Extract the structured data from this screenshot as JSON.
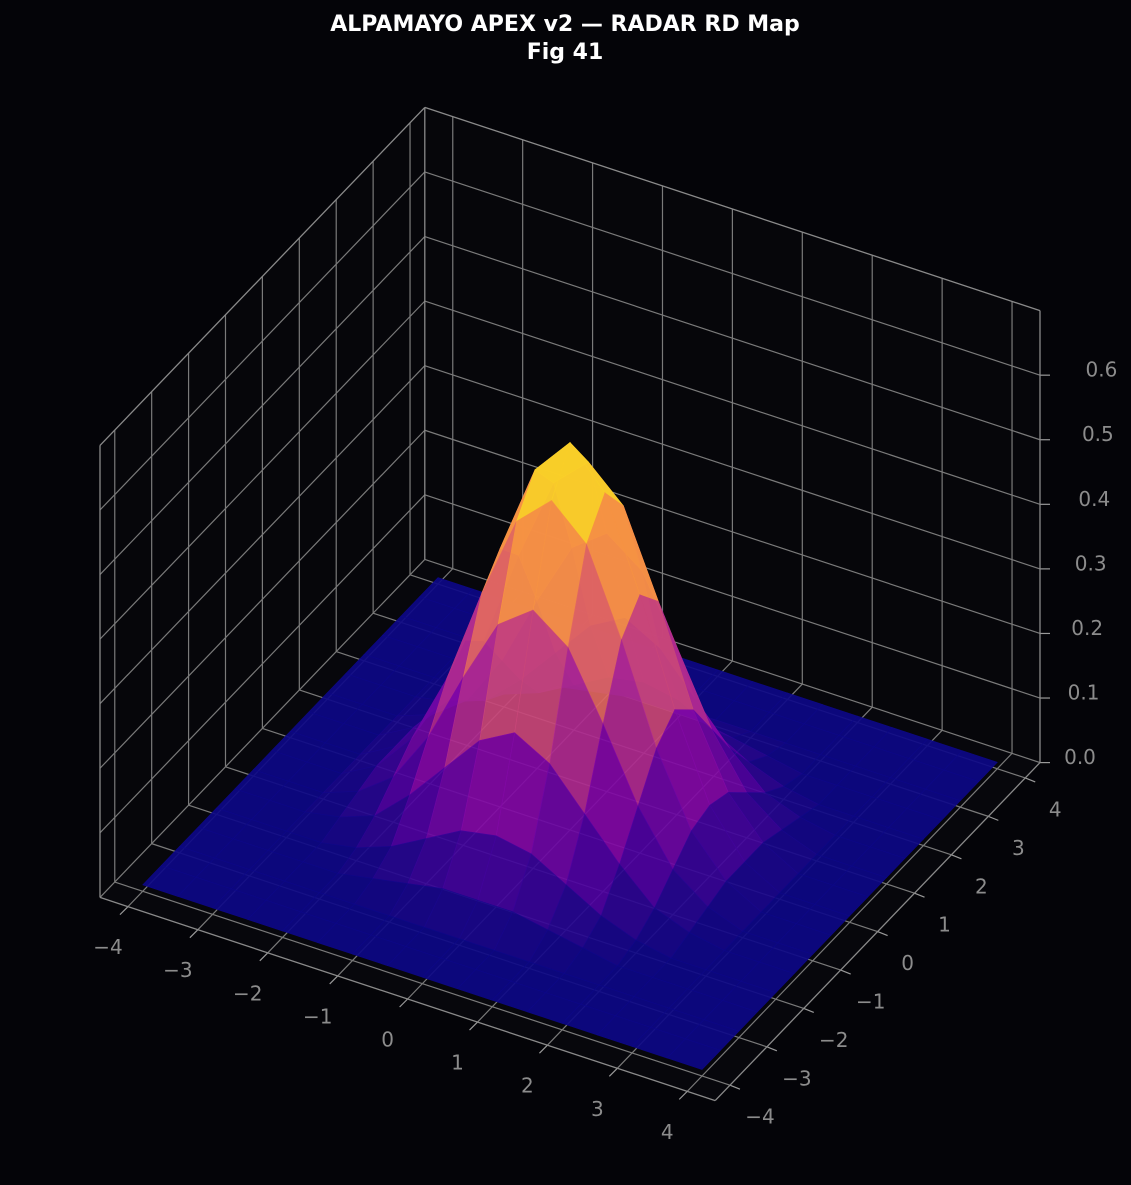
{
  "chart_data": {
    "type": "surface",
    "title": "ALPAMAYO APEX v2 — RADAR RD Map",
    "subtitle": "Fig 41",
    "colormap": "plasma",
    "grid": true,
    "x": [
      -4,
      -3.5,
      -3,
      -2.5,
      -2,
      -1.5,
      -1,
      -0.5,
      0,
      0.5,
      1,
      1.5,
      2,
      2.5,
      3,
      3.5,
      4
    ],
    "y": [
      -4,
      -3.5,
      -3,
      -2.5,
      -2,
      -1.5,
      -1,
      -0.5,
      0,
      0.5,
      1,
      1.5,
      2,
      2.5,
      3,
      3.5,
      4
    ],
    "z": [
      [
        0.01,
        0.01,
        0.01,
        0.01,
        0.01,
        0.01,
        0.01,
        0.01,
        0.01,
        0.01,
        0.01,
        0.01,
        0.01,
        0.01,
        0.01,
        0.01,
        0.01
      ],
      [
        0.01,
        0.01,
        0.01,
        0.01,
        0.01,
        0.01,
        0.01,
        0.01,
        0.01,
        0.01,
        0.01,
        0.01,
        0.01,
        0.01,
        0.01,
        0.01,
        0.01
      ],
      [
        0.01,
        0.01,
        0.01,
        0.01,
        0.01,
        0.01,
        0.01,
        0.01,
        0.01,
        0.01,
        0.01,
        0.01,
        0.01,
        0.01,
        0.01,
        0.01,
        0.01
      ],
      [
        0.01,
        0.01,
        0.01,
        0.01,
        0.01,
        0.02,
        0.03,
        0.04,
        0.04,
        0.04,
        0.03,
        0.02,
        0.01,
        0.01,
        0.01,
        0.01,
        0.01
      ],
      [
        0.01,
        0.01,
        0.01,
        0.01,
        0.02,
        0.04,
        0.07,
        0.1,
        0.11,
        0.1,
        0.07,
        0.04,
        0.02,
        0.01,
        0.01,
        0.01,
        0.01
      ],
      [
        0.01,
        0.01,
        0.01,
        0.02,
        0.04,
        0.09,
        0.15,
        0.21,
        0.24,
        0.21,
        0.15,
        0.09,
        0.04,
        0.02,
        0.01,
        0.01,
        0.01
      ],
      [
        0.01,
        0.01,
        0.01,
        0.03,
        0.07,
        0.15,
        0.26,
        0.36,
        0.4,
        0.36,
        0.26,
        0.15,
        0.07,
        0.03,
        0.01,
        0.01,
        0.01
      ],
      [
        0.01,
        0.01,
        0.01,
        0.04,
        0.1,
        0.21,
        0.36,
        0.49,
        0.54,
        0.49,
        0.36,
        0.21,
        0.1,
        0.04,
        0.01,
        0.01,
        0.01
      ],
      [
        0.01,
        0.01,
        0.01,
        0.04,
        0.11,
        0.24,
        0.4,
        0.54,
        0.6,
        0.54,
        0.4,
        0.24,
        0.11,
        0.04,
        0.01,
        0.01,
        0.01
      ],
      [
        0.01,
        0.01,
        0.01,
        0.04,
        0.1,
        0.21,
        0.36,
        0.49,
        0.54,
        0.49,
        0.36,
        0.21,
        0.1,
        0.04,
        0.01,
        0.01,
        0.01
      ],
      [
        0.01,
        0.01,
        0.01,
        0.03,
        0.07,
        0.15,
        0.26,
        0.36,
        0.4,
        0.36,
        0.26,
        0.15,
        0.07,
        0.03,
        0.01,
        0.01,
        0.01
      ],
      [
        0.01,
        0.01,
        0.01,
        0.02,
        0.04,
        0.09,
        0.15,
        0.21,
        0.24,
        0.21,
        0.15,
        0.09,
        0.04,
        0.02,
        0.01,
        0.01,
        0.01
      ],
      [
        0.01,
        0.01,
        0.01,
        0.01,
        0.02,
        0.04,
        0.07,
        0.1,
        0.11,
        0.1,
        0.07,
        0.04,
        0.02,
        0.01,
        0.01,
        0.01,
        0.01
      ],
      [
        0.01,
        0.01,
        0.01,
        0.01,
        0.01,
        0.02,
        0.03,
        0.04,
        0.04,
        0.04,
        0.03,
        0.02,
        0.01,
        0.01,
        0.01,
        0.01,
        0.01
      ],
      [
        0.01,
        0.01,
        0.01,
        0.01,
        0.01,
        0.01,
        0.01,
        0.01,
        0.01,
        0.01,
        0.01,
        0.01,
        0.01,
        0.01,
        0.01,
        0.01,
        0.01
      ],
      [
        0.01,
        0.01,
        0.01,
        0.01,
        0.01,
        0.01,
        0.01,
        0.01,
        0.01,
        0.01,
        0.01,
        0.01,
        0.01,
        0.01,
        0.01,
        0.01,
        0.01
      ],
      [
        0.01,
        0.01,
        0.01,
        0.01,
        0.01,
        0.01,
        0.01,
        0.01,
        0.01,
        0.01,
        0.01,
        0.01,
        0.01,
        0.01,
        0.01,
        0.01,
        0.01
      ]
    ],
    "xlim": [
      -4.4,
      4.4
    ],
    "ylim": [
      -4.4,
      4.4
    ],
    "zlim": [
      0,
      0.7
    ],
    "xticks": [
      {
        "value": -4,
        "label": "−4"
      },
      {
        "value": -3,
        "label": "−3"
      },
      {
        "value": -2,
        "label": "−2"
      },
      {
        "value": -1,
        "label": "−1"
      },
      0,
      1,
      2,
      3,
      4
    ],
    "yticks": [
      {
        "value": -4,
        "label": "−4"
      },
      {
        "value": -3,
        "label": "−3"
      },
      {
        "value": -2,
        "label": "−2"
      },
      {
        "value": -1,
        "label": "−1"
      },
      0,
      1,
      2,
      3,
      4
    ],
    "zticks": [
      {
        "value": 0,
        "label": "0.0"
      },
      0.1,
      0.2,
      0.3,
      0.4,
      0.5,
      0.6
    ]
  }
}
